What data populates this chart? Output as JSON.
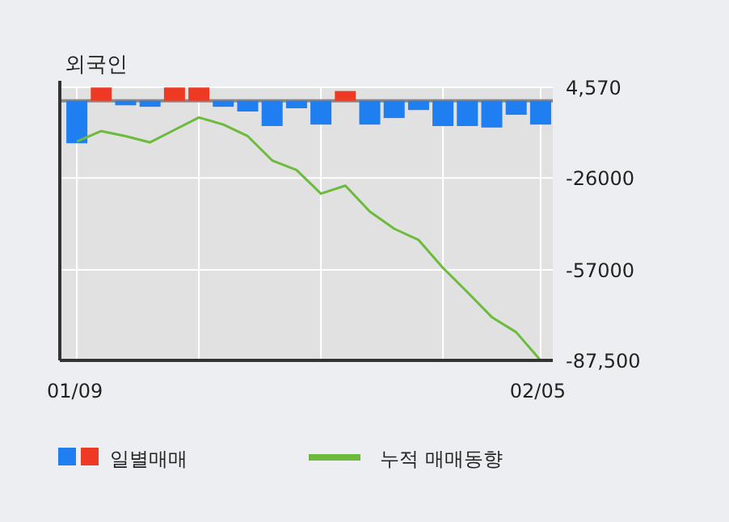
{
  "chart_data": {
    "type": "bar",
    "title": "외국인",
    "categories": [
      "01/09",
      null,
      null,
      null,
      null,
      null,
      null,
      null,
      null,
      null,
      null,
      null,
      null,
      null,
      null,
      null,
      null,
      null,
      null,
      "02/05"
    ],
    "series": [
      {
        "name": "일별매매",
        "colors": [
          "#1f7ef0",
          "#ee3a24",
          "#1f7ef0",
          "#1f7ef0",
          "#ee3a24",
          "#ee3a24",
          "#1f7ef0",
          "#1f7ef0",
          "#1f7ef0",
          "#1f7ef0",
          "#1f7ef0",
          "#ee3a24",
          "#1f7ef0",
          "#1f7ef0",
          "#1f7ef0",
          "#1f7ef0",
          "#1f7ef0",
          "#1f7ef0",
          "#1f7ef0",
          "#1f7ef0"
        ],
        "values": [
          -14300,
          4500,
          -1500,
          -2000,
          4500,
          4500,
          -2000,
          -3600,
          -8500,
          -2500,
          -8000,
          3300,
          -8000,
          -5800,
          -3100,
          -8500,
          -8500,
          -9000,
          -4700,
          -8000
        ]
      },
      {
        "name": "누적 매매동향",
        "type": "line",
        "color": "#6cbb3c",
        "values": [
          -13700,
          -10200,
          -11900,
          -14000,
          -9800,
          -5600,
          -8000,
          -11900,
          -20100,
          -23300,
          -31300,
          -28600,
          -37300,
          -43100,
          -46900,
          -56300,
          -64500,
          -72900,
          -78000,
          -87500
        ]
      }
    ],
    "ylim": [
      -87500,
      4570
    ],
    "yticks": [
      {
        "value": 4570,
        "label": "4,570"
      },
      -26000,
      -57000,
      {
        "value": -87500,
        "label": "-87,500"
      }
    ],
    "ref_lines": [
      {
        "axis": "y",
        "value": 0,
        "color": "#888888"
      }
    ],
    "grid": true,
    "legend": "bottom"
  }
}
